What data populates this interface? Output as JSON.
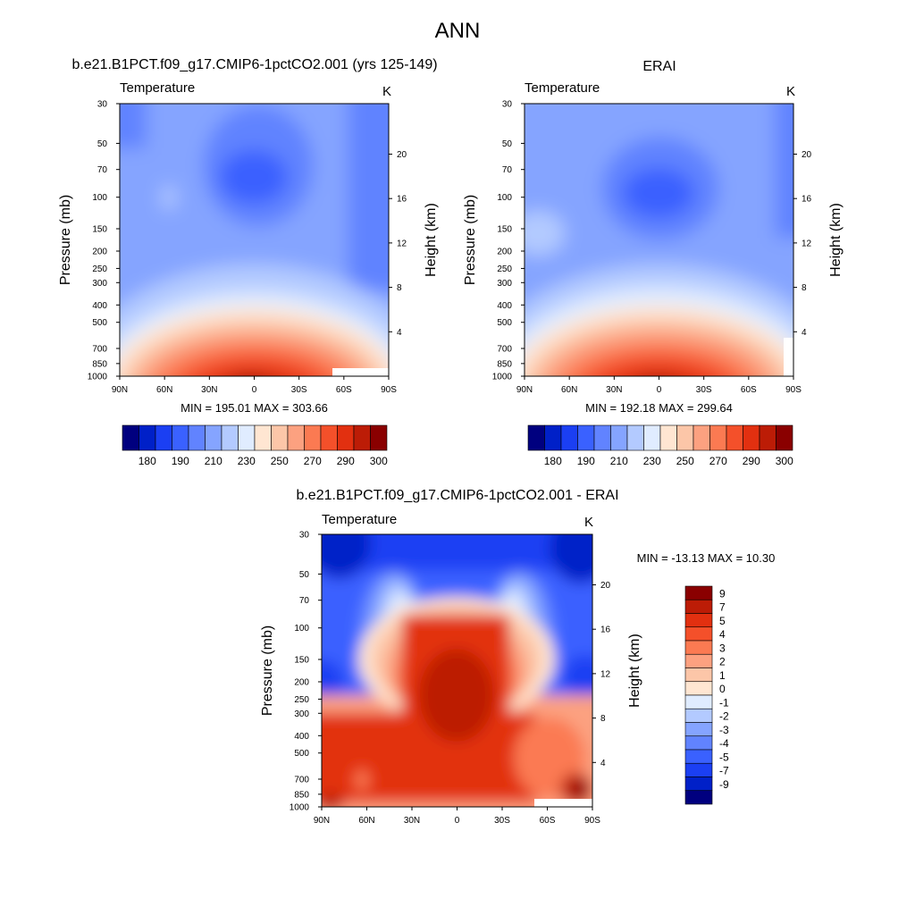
{
  "page_title": "ANN",
  "colors": {
    "temp_scale": [
      "#00007f",
      "#0020c8",
      "#1b3ff3",
      "#3a61ff",
      "#6183ff",
      "#85a4ff",
      "#b3caff",
      "#e0ecff",
      "#ffe6d2",
      "#fcc6a8",
      "#fca180",
      "#fb7a52",
      "#f4502a",
      "#e23010",
      "#bc1c06",
      "#8a0000"
    ],
    "diff_scale": [
      "#00007f",
      "#0020c8",
      "#1b3ff3",
      "#3a61ff",
      "#6183ff",
      "#85a4ff",
      "#b3caff",
      "#e0ecff",
      "#ffe6d2",
      "#fcc6a8",
      "#fca180",
      "#fb7a52",
      "#f4502a",
      "#e23010",
      "#bc1c06",
      "#8a0000"
    ]
  },
  "chart_data": [
    {
      "type": "heatmap",
      "title": "b.e21.B1PCT.f09_g17.CMIP6-1pctCO2.001 (yrs 125-149)",
      "subtitle_left": "Temperature",
      "subtitle_right": "K",
      "ylabel": "Pressure (mb)",
      "y2label": "Height (km)",
      "x_ticks": [
        "90N",
        "60N",
        "30N",
        "0",
        "30S",
        "60S",
        "90S"
      ],
      "y_ticks": [
        "30",
        "50",
        "70",
        "100",
        "150",
        "200",
        "250",
        "300",
        "400",
        "500",
        "700",
        "850",
        "1000"
      ],
      "y2_ticks": [
        "20",
        "16",
        "12",
        "8",
        "4"
      ],
      "stats": "MIN = 195.01  MAX = 303.66",
      "min": 195.01,
      "max": 303.66,
      "colorbar_labels": [
        "180",
        "190",
        "210",
        "230",
        "250",
        "270",
        "290",
        "300"
      ]
    },
    {
      "type": "heatmap",
      "title": "ERAI",
      "subtitle_left": "Temperature",
      "subtitle_right": "K",
      "ylabel": "Pressure (mb)",
      "y2label": "Height (km)",
      "x_ticks": [
        "90N",
        "60N",
        "30N",
        "0",
        "30S",
        "60S",
        "90S"
      ],
      "y_ticks": [
        "30",
        "50",
        "70",
        "100",
        "150",
        "200",
        "250",
        "300",
        "400",
        "500",
        "700",
        "850",
        "1000"
      ],
      "y2_ticks": [
        "20",
        "16",
        "12",
        "8",
        "4"
      ],
      "stats": "MIN = 192.18  MAX = 299.64",
      "min": 192.18,
      "max": 299.64,
      "colorbar_labels": [
        "180",
        "190",
        "210",
        "230",
        "250",
        "270",
        "290",
        "300"
      ]
    },
    {
      "type": "heatmap",
      "title": "b.e21.B1PCT.f09_g17.CMIP6-1pctCO2.001 - ERAI",
      "subtitle_left": "Temperature",
      "subtitle_right": "K",
      "ylabel": "Pressure (mb)",
      "y2label": "Height (km)",
      "x_ticks": [
        "90N",
        "60N",
        "30N",
        "0",
        "30S",
        "60S",
        "90S"
      ],
      "y_ticks": [
        "30",
        "50",
        "70",
        "100",
        "150",
        "200",
        "250",
        "300",
        "400",
        "500",
        "700",
        "850",
        "1000"
      ],
      "y2_ticks": [
        "20",
        "16",
        "12",
        "8",
        "4"
      ],
      "stats": "MIN = -13.13  MAX =  10.30",
      "min": -13.13,
      "max": 10.3,
      "colorbar_labels": [
        "9",
        "7",
        "5",
        "4",
        "3",
        "2",
        "1",
        "0",
        "-1",
        "-2",
        "-3",
        "-4",
        "-5",
        "-7",
        "-9"
      ]
    }
  ]
}
